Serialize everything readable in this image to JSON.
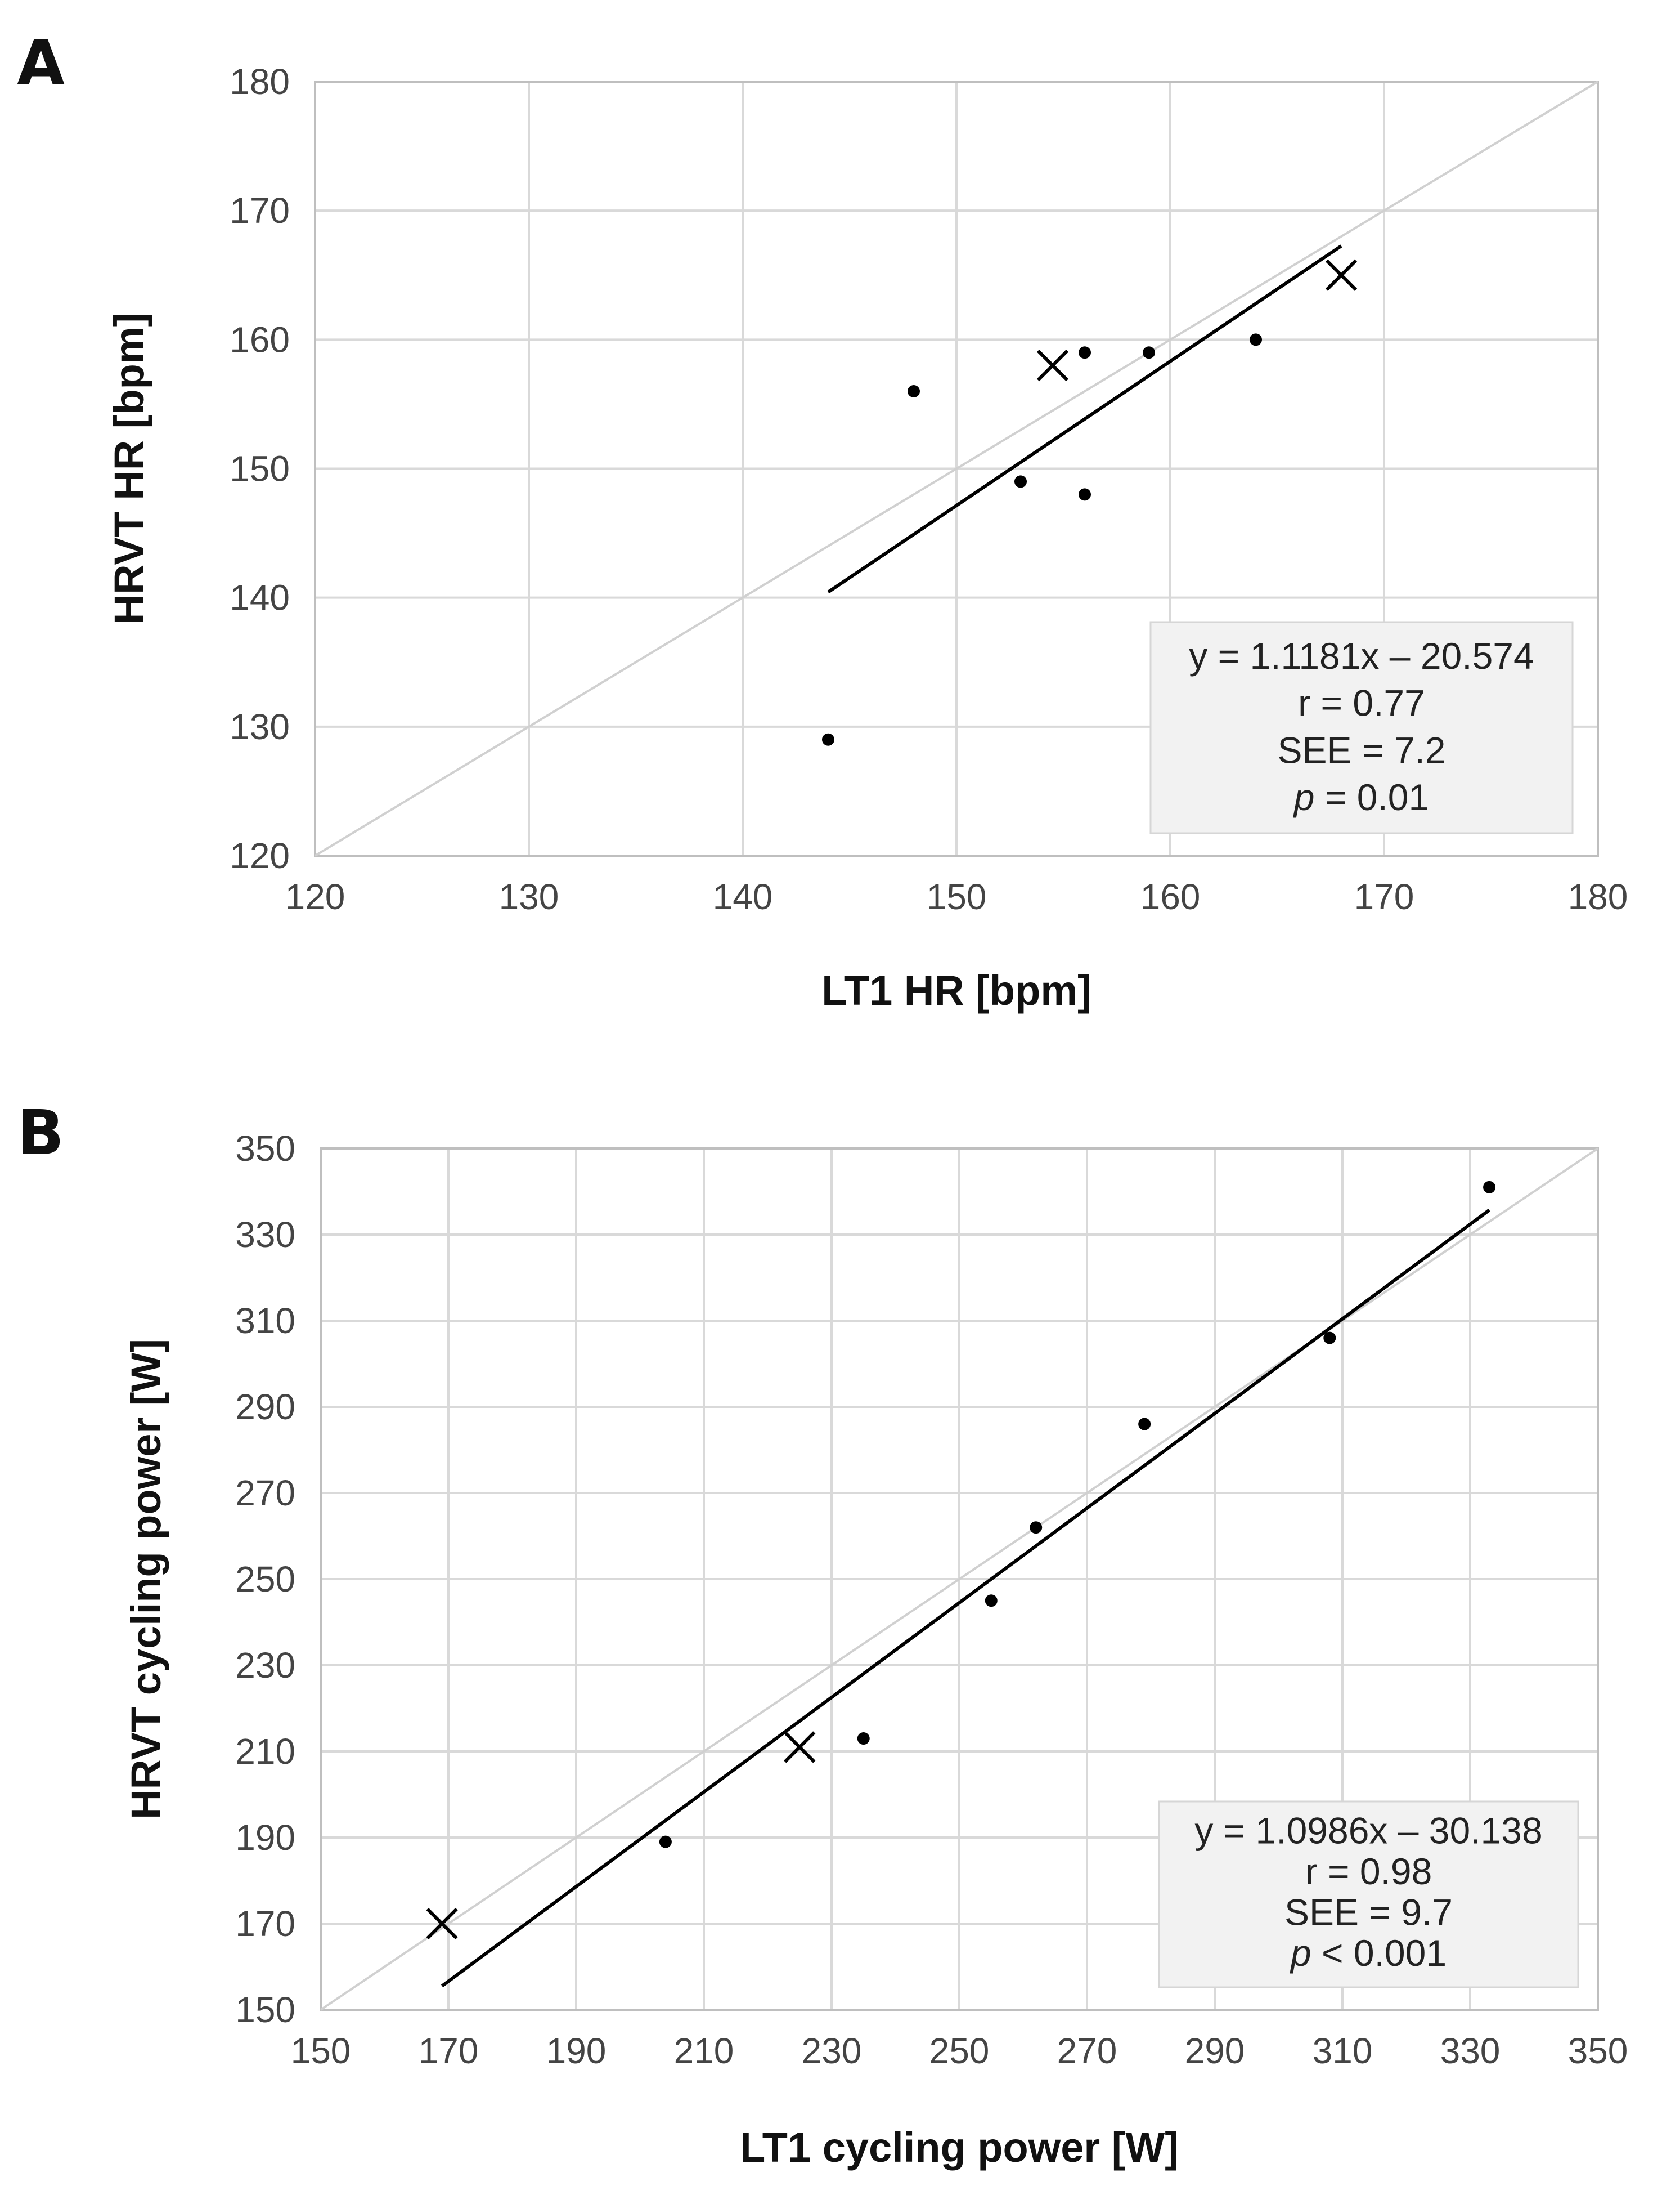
{
  "chart_data": [
    {
      "type": "scatter",
      "panel": "A",
      "title": "",
      "xlabel": "LT1 HR [bpm]",
      "ylabel": "HRVT HR [bpm]",
      "xlim": [
        120,
        180
      ],
      "ylim": [
        120,
        180
      ],
      "xticks": [
        120,
        130,
        140,
        150,
        160,
        170,
        180
      ],
      "yticks": [
        120,
        130,
        140,
        150,
        160,
        170,
        180
      ],
      "grid": true,
      "identity_line": true,
      "points": [
        {
          "x": 144,
          "y": 129
        },
        {
          "x": 148,
          "y": 156
        },
        {
          "x": 153,
          "y": 149
        },
        {
          "x": 156,
          "y": 148
        },
        {
          "x": 156,
          "y": 159
        },
        {
          "x": 159,
          "y": 159
        },
        {
          "x": 164,
          "y": 160
        }
      ],
      "cross_points": [
        {
          "x": 154.5,
          "y": 158
        },
        {
          "x": 168,
          "y": 165
        }
      ],
      "trendline": {
        "slope": 1.1181,
        "intercept": -20.574,
        "x_range": [
          144,
          168
        ]
      },
      "stats": {
        "equation": "y = 1.1181x – 20.574",
        "r": "r = 0.77",
        "see": "SEE = 7.2",
        "p_label": "p",
        "p_value": " = 0.01"
      }
    },
    {
      "type": "scatter",
      "panel": "B",
      "title": "",
      "xlabel": "LT1 cycling power [W]",
      "ylabel": "HRVT cycling power [W]",
      "xlim": [
        150,
        350
      ],
      "ylim": [
        150,
        350
      ],
      "xticks": [
        150,
        170,
        190,
        210,
        230,
        250,
        270,
        290,
        310,
        330,
        350
      ],
      "yticks": [
        150,
        170,
        190,
        210,
        230,
        250,
        270,
        290,
        310,
        330,
        350
      ],
      "grid": true,
      "identity_line": true,
      "points": [
        {
          "x": 204,
          "y": 189
        },
        {
          "x": 235,
          "y": 213
        },
        {
          "x": 255,
          "y": 245
        },
        {
          "x": 262,
          "y": 262
        },
        {
          "x": 279,
          "y": 286
        },
        {
          "x": 308,
          "y": 306
        },
        {
          "x": 333,
          "y": 341
        }
      ],
      "cross_points": [
        {
          "x": 169,
          "y": 170
        },
        {
          "x": 225,
          "y": 211
        }
      ],
      "trendline": {
        "slope": 1.0986,
        "intercept": -30.138,
        "x_range": [
          169,
          333
        ]
      },
      "stats": {
        "equation": "y = 1.0986x – 30.138",
        "r": "r = 0.98",
        "see": "SEE = 9.7",
        "p_label": "p",
        "p_value": " < 0.001"
      }
    }
  ]
}
